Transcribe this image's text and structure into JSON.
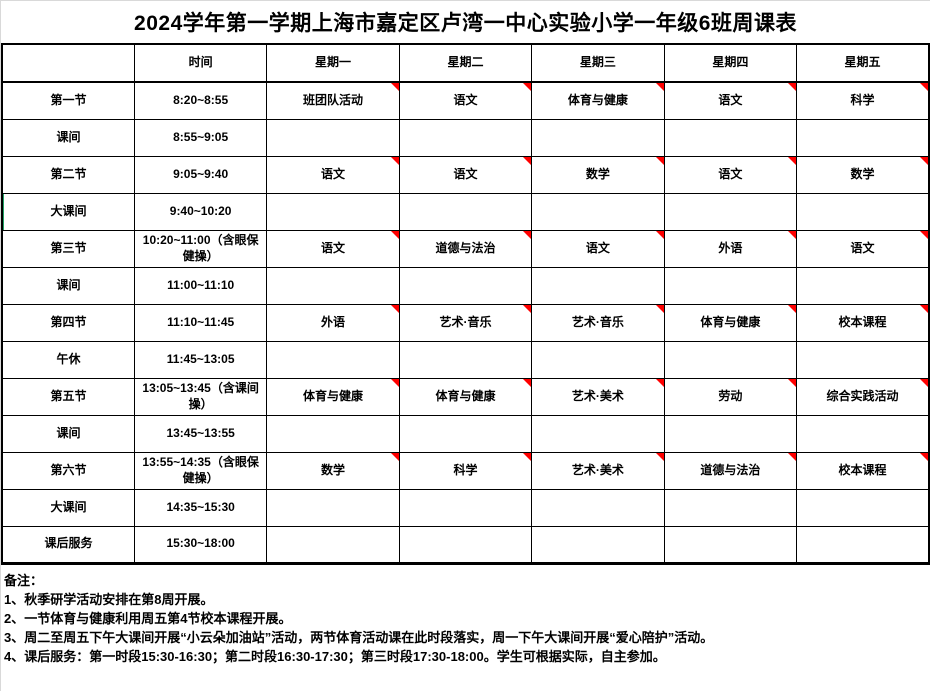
{
  "page": {
    "title": "2024学年第一学期上海市嘉定区卢湾一中心实验小学一年级6班周课表"
  },
  "timetable": {
    "header": {
      "period": "",
      "time": "时间",
      "days": [
        "星期一",
        "星期二",
        "星期三",
        "星期四",
        "星期五"
      ]
    },
    "rows": [
      {
        "period": "第一节",
        "time": "8:20~8:55",
        "subjects": [
          "班团队活动",
          "语文",
          "体育与健康",
          "语文",
          "科学"
        ]
      },
      {
        "period": "课间",
        "time": "8:55~9:05",
        "subjects": [
          "",
          "",
          "",
          "",
          ""
        ]
      },
      {
        "period": "第二节",
        "time": "9:05~9:40",
        "subjects": [
          "语文",
          "语文",
          "数学",
          "语文",
          "数学"
        ]
      },
      {
        "period": "大课间",
        "time": "9:40~10:20",
        "subjects": [
          "",
          "",
          "",
          "",
          ""
        ],
        "selected": true
      },
      {
        "period": "第三节",
        "time": "10:20~11:00（含眼保健操）",
        "subjects": [
          "语文",
          "道德与法治",
          "语文",
          "外语",
          "语文"
        ]
      },
      {
        "period": "课间",
        "time": "11:00~11:10",
        "subjects": [
          "",
          "",
          "",
          "",
          ""
        ]
      },
      {
        "period": "第四节",
        "time": "11:10~11:45",
        "subjects": [
          "外语",
          "艺术·音乐",
          "艺术·音乐",
          "体育与健康",
          "校本课程"
        ]
      },
      {
        "period": "午休",
        "time": "11:45~13:05",
        "subjects": [
          "",
          "",
          "",
          "",
          ""
        ]
      },
      {
        "period": "第五节",
        "time": "13:05~13:45（含课间操）",
        "subjects": [
          "体育与健康",
          "体育与健康",
          "艺术·美术",
          "劳动",
          "综合实践活动"
        ]
      },
      {
        "period": "课间",
        "time": "13:45~13:55",
        "subjects": [
          "",
          "",
          "",
          "",
          ""
        ]
      },
      {
        "period": "第六节",
        "time": "13:55~14:35（含眼保健操）",
        "subjects": [
          "数学",
          "科学",
          "艺术·美术",
          "道德与法治",
          "校本课程"
        ]
      },
      {
        "period": "大课间",
        "time": "14:35~15:30",
        "subjects": [
          "",
          "",
          "",
          "",
          ""
        ]
      },
      {
        "period": "课后服务",
        "time": "15:30~18:00",
        "subjects": [
          "",
          "",
          "",
          "",
          ""
        ]
      }
    ],
    "comment_indicator_color": "#ff0000",
    "selection_marker_color": "#21a366"
  },
  "notes": {
    "label": "备注：",
    "items": [
      "1、秋季研学活动安排在第8周开展。",
      "2、一节体育与健康利用周五第4节校本课程开展。",
      "3、周二至周五下午大课间开展“小云朵加油站”活动，两节体育活动课在此时段落实，周一下午大课间开展“爱心陪护”活动。",
      "4、课后服务：第一时段15:30-16:30；第二时段16:30-17:30；第三时段17:30-18:00。学生可根据实际，自主参加。"
    ]
  }
}
